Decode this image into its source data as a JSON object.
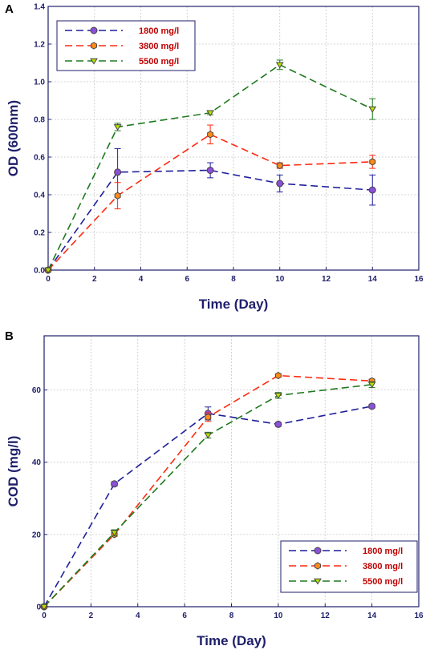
{
  "chart_data": [
    {
      "panel": "A",
      "type": "line",
      "xlabel": "Time (Day)",
      "ylabel": "OD (600nm)",
      "xlim": [
        0,
        16
      ],
      "ylim": [
        0,
        1.4
      ],
      "xticks": [
        "0",
        "2",
        "4",
        "6",
        "8",
        "10",
        "12",
        "14",
        "16"
      ],
      "yticks": [
        "0.0",
        "0.2",
        "0.4",
        "0.6",
        "0.8",
        "1.0",
        "1.2",
        "1.4"
      ],
      "grid": true,
      "legend_position": "top-left",
      "series": [
        {
          "name": "1800 mg/l",
          "color": "#1f1f9c",
          "fill": "#8b4fd8",
          "marker": "circle",
          "x": [
            0,
            3,
            7,
            10,
            14
          ],
          "y": [
            0.0,
            0.52,
            0.53,
            0.46,
            0.425
          ],
          "err": [
            0,
            0.125,
            0.04,
            0.045,
            0.08
          ]
        },
        {
          "name": "3800 mg/l",
          "color": "#ff2a10",
          "fill": "#ff8c1a",
          "marker": "hexagon",
          "x": [
            0,
            3,
            7,
            10,
            14
          ],
          "y": [
            0.0,
            0.395,
            0.72,
            0.555,
            0.575
          ],
          "err": [
            0,
            0.07,
            0.05,
            0.015,
            0.035
          ]
        },
        {
          "name": "5500 mg/l",
          "color": "#1f7a1f",
          "fill": "#b7e000",
          "marker": "triangle-down",
          "x": [
            0,
            3,
            7,
            10,
            14
          ],
          "y": [
            0.0,
            0.76,
            0.835,
            1.09,
            0.855
          ],
          "err": [
            0,
            0.02,
            0.01,
            0.025,
            0.055
          ]
        }
      ]
    },
    {
      "panel": "B",
      "type": "line",
      "xlabel": "Time (Day)",
      "ylabel": "COD (mg/l)",
      "xlim": [
        0,
        16
      ],
      "ylim": [
        0,
        75
      ],
      "xticks": [
        "0",
        "2",
        "4",
        "6",
        "8",
        "10",
        "12",
        "14",
        "16"
      ],
      "yticks": [
        "0",
        "20",
        "40",
        "60"
      ],
      "grid": true,
      "legend_position": "bottom-right",
      "series": [
        {
          "name": "1800 mg/l",
          "color": "#1f1f9c",
          "fill": "#8b4fd8",
          "marker": "circle",
          "x": [
            0,
            3,
            7,
            10,
            14
          ],
          "y": [
            0,
            34,
            53.5,
            50.5,
            55.5
          ],
          "err": [
            0,
            0.6,
            1.8,
            0.5,
            0.5
          ]
        },
        {
          "name": "3800 mg/l",
          "color": "#ff2a10",
          "fill": "#ff8c1a",
          "marker": "hexagon",
          "x": [
            0,
            3,
            7,
            10,
            14
          ],
          "y": [
            0,
            20,
            52.5,
            64,
            62.5
          ],
          "err": [
            0,
            0.5,
            1.2,
            0.4,
            0.5
          ]
        },
        {
          "name": "5500 mg/l",
          "color": "#1f7a1f",
          "fill": "#b7e000",
          "marker": "triangle-down",
          "x": [
            0,
            3,
            7,
            10,
            14
          ],
          "y": [
            0,
            20.5,
            47.5,
            58.5,
            61.5
          ],
          "err": [
            0,
            0.8,
            0.8,
            0.8,
            0.8
          ]
        }
      ]
    }
  ]
}
